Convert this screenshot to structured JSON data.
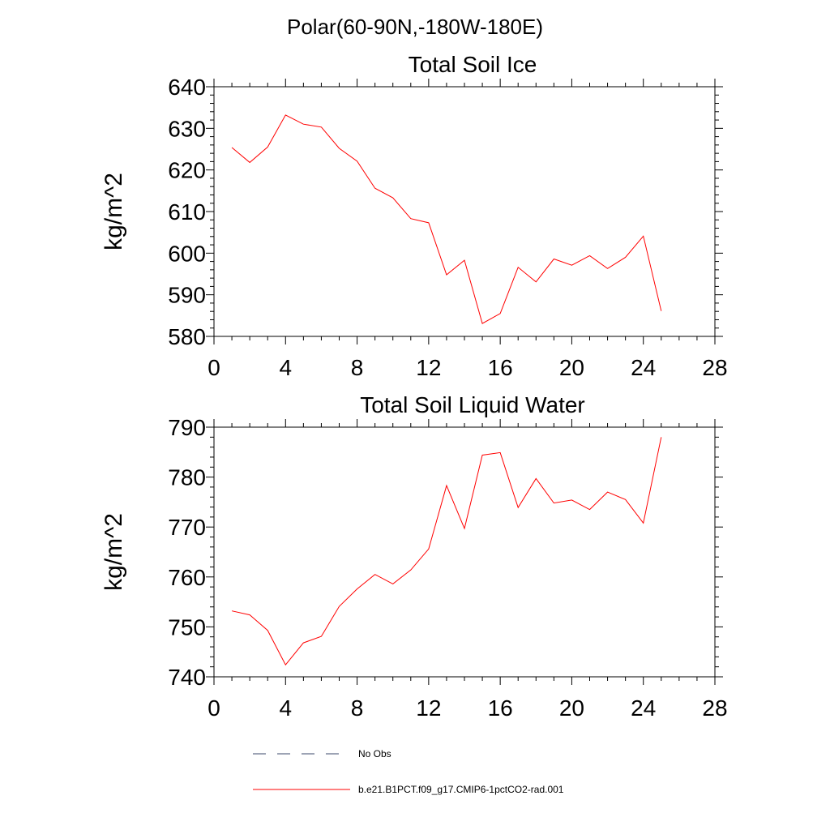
{
  "page_title": "Polar(60-90N,-180W-180E)",
  "chart_data": [
    {
      "type": "line",
      "title": "Total Soil Ice",
      "xlabel": "",
      "ylabel": "kg/m^2",
      "xlim": [
        0,
        28
      ],
      "ylim": [
        580,
        640
      ],
      "x_ticks": [
        0,
        4,
        8,
        12,
        16,
        20,
        24,
        28
      ],
      "y_ticks": [
        580,
        590,
        600,
        610,
        620,
        630,
        640
      ],
      "series": [
        {
          "name": "b.e21.B1PCT.f09_g17.CMIP6-1pctCO2-rad.001",
          "color": "#ff0000",
          "x": [
            1,
            2,
            3,
            4,
            5,
            6,
            7,
            8,
            9,
            10,
            11,
            12,
            13,
            14,
            15,
            16,
            17,
            18,
            19,
            20,
            21,
            22,
            23,
            24,
            25
          ],
          "y": [
            625.4,
            621.8,
            625.5,
            633.2,
            631.0,
            630.3,
            625.2,
            622.1,
            615.6,
            613.3,
            608.3,
            607.3,
            594.8,
            598.3,
            583.1,
            585.5,
            596.6,
            593.1,
            598.6,
            597.1,
            599.4,
            596.3,
            599.0,
            604.1,
            586.1
          ]
        }
      ]
    },
    {
      "type": "line",
      "title": "Total Soil Liquid Water",
      "xlabel": "",
      "ylabel": "kg/m^2",
      "xlim": [
        0,
        28
      ],
      "ylim": [
        740,
        790
      ],
      "x_ticks": [
        0,
        4,
        8,
        12,
        16,
        20,
        24,
        28
      ],
      "y_ticks": [
        740,
        750,
        760,
        770,
        780,
        790
      ],
      "series": [
        {
          "name": "b.e21.B1PCT.f09_g17.CMIP6-1pctCO2-rad.001",
          "color": "#ff0000",
          "x": [
            1,
            2,
            3,
            4,
            5,
            6,
            7,
            8,
            9,
            10,
            11,
            12,
            13,
            14,
            15,
            16,
            17,
            18,
            19,
            20,
            21,
            22,
            23,
            24,
            25
          ],
          "y": [
            753.2,
            752.4,
            749.3,
            742.4,
            746.8,
            748.1,
            754.1,
            757.6,
            760.5,
            758.6,
            761.4,
            765.6,
            778.3,
            769.7,
            784.4,
            784.9,
            773.9,
            779.7,
            774.8,
            775.4,
            773.5,
            777.0,
            775.5,
            770.8,
            788.0
          ]
        }
      ]
    }
  ],
  "legend": {
    "items": [
      {
        "label": "No Obs",
        "color": "#3b4a6b",
        "style": "dashed"
      },
      {
        "label": "b.e21.B1PCT.f09_g17.CMIP6-1pctCO2-rad.001",
        "color": "#ff0000",
        "style": "solid"
      }
    ]
  }
}
